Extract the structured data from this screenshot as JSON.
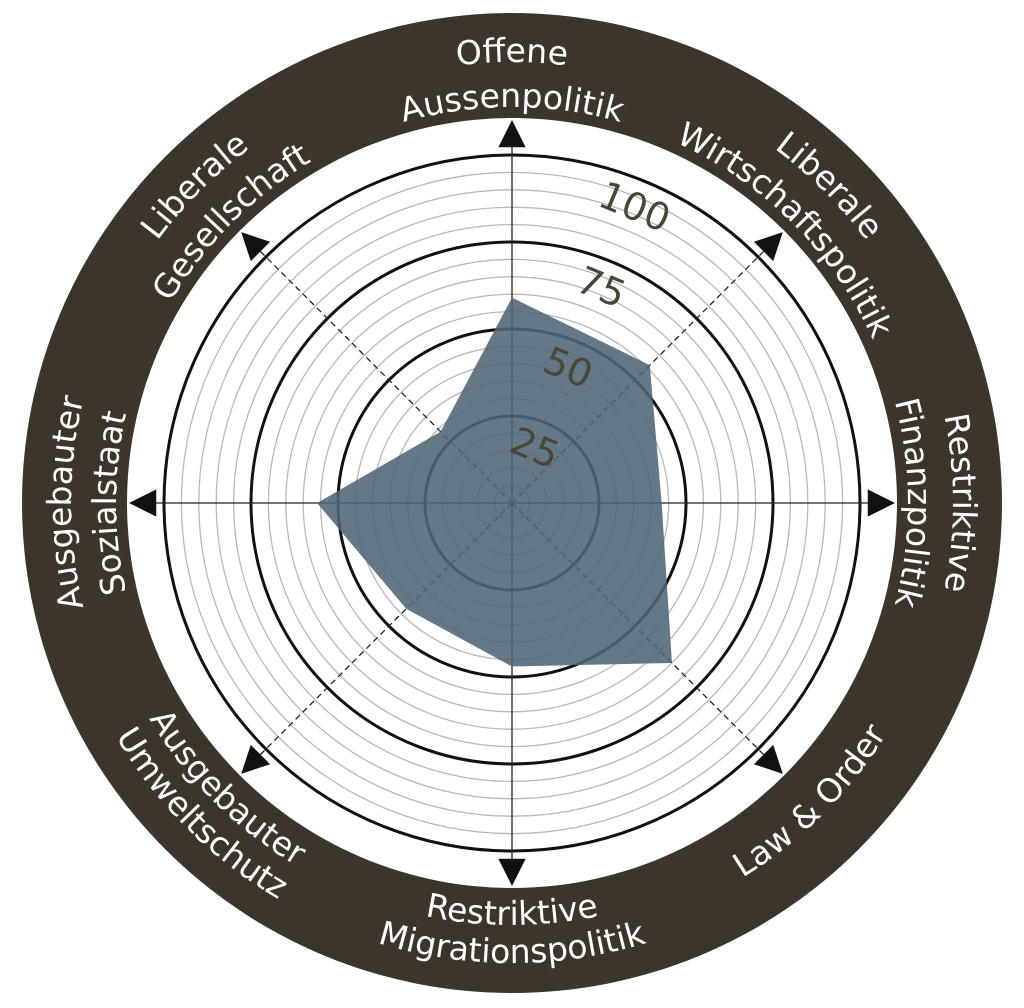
{
  "chart_data": {
    "type": "radar",
    "categories": [
      [
        "Offene",
        "Aussenpolitik"
      ],
      [
        "Liberale",
        "Wirtschaftspolitik"
      ],
      [
        "Restriktive",
        "Finanzpolitik"
      ],
      [
        "Law & Order"
      ],
      [
        "Restriktive",
        "Migrationspolitik"
      ],
      [
        "Ausgebauter",
        "Umweltschutz"
      ],
      [
        "Ausgebauter",
        "Sozialstaat"
      ],
      [
        "Liberale",
        "Gesellschaft"
      ]
    ],
    "values": [
      59,
      56,
      43,
      65,
      47,
      43,
      56,
      29
    ],
    "color": "#4f6577",
    "ylim": [
      0,
      100
    ],
    "yticks": [
      25,
      50,
      75,
      100
    ],
    "minor_yticks": [
      5,
      10,
      15,
      20,
      30,
      35,
      40,
      45,
      55,
      60,
      65,
      70,
      80,
      85,
      90,
      95
    ],
    "grid": true
  }
}
